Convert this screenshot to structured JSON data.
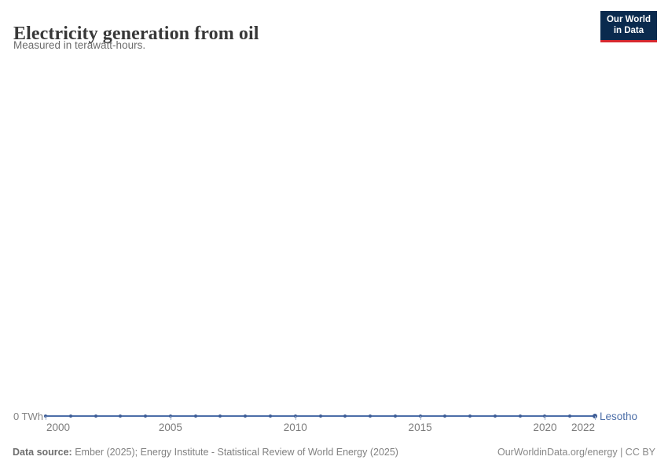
{
  "header": {
    "title": "Electricity generation from oil",
    "subtitle": "Measured in terawatt-hours."
  },
  "logo": {
    "line1": "Our World",
    "line2": "in Data"
  },
  "axis": {
    "y_zero_label": "0 TWh"
  },
  "entity_label": "Lesotho",
  "footer": {
    "source_label": "Data source:",
    "source_text": " Ember (2025); Energy Institute - Statistical Review of World Energy (2025)",
    "right_text": "OurWorldinData.org/energy | CC BY"
  },
  "colors": {
    "line": "#4c6ea8",
    "dot": "#3e5d96",
    "tick": "#9fb1cd",
    "entity_label": "#4c6ea8",
    "logo_bg": "#0a2a4e",
    "logo_stripe": "#d7282f"
  },
  "chart_data": {
    "type": "line",
    "title": "Electricity generation from oil",
    "subtitle": "Measured in terawatt-hours.",
    "xlabel": "",
    "ylabel": "TWh",
    "xlim": [
      2000,
      2022
    ],
    "ylim": [
      0,
      0
    ],
    "grid": false,
    "legend_position": "end-of-line-label",
    "x_ticks": [
      2000,
      2005,
      2010,
      2015,
      2020,
      2022
    ],
    "y_ticks": [
      "0 TWh"
    ],
    "series": [
      {
        "name": "Lesotho",
        "x": [
          2000,
          2001,
          2002,
          2003,
          2004,
          2005,
          2006,
          2007,
          2008,
          2009,
          2010,
          2011,
          2012,
          2013,
          2014,
          2015,
          2016,
          2017,
          2018,
          2019,
          2020,
          2021,
          2022
        ],
        "values": [
          0,
          0,
          0,
          0,
          0,
          0,
          0,
          0,
          0,
          0,
          0,
          0,
          0,
          0,
          0,
          0,
          0,
          0,
          0,
          0,
          0,
          0,
          0
        ]
      }
    ]
  }
}
